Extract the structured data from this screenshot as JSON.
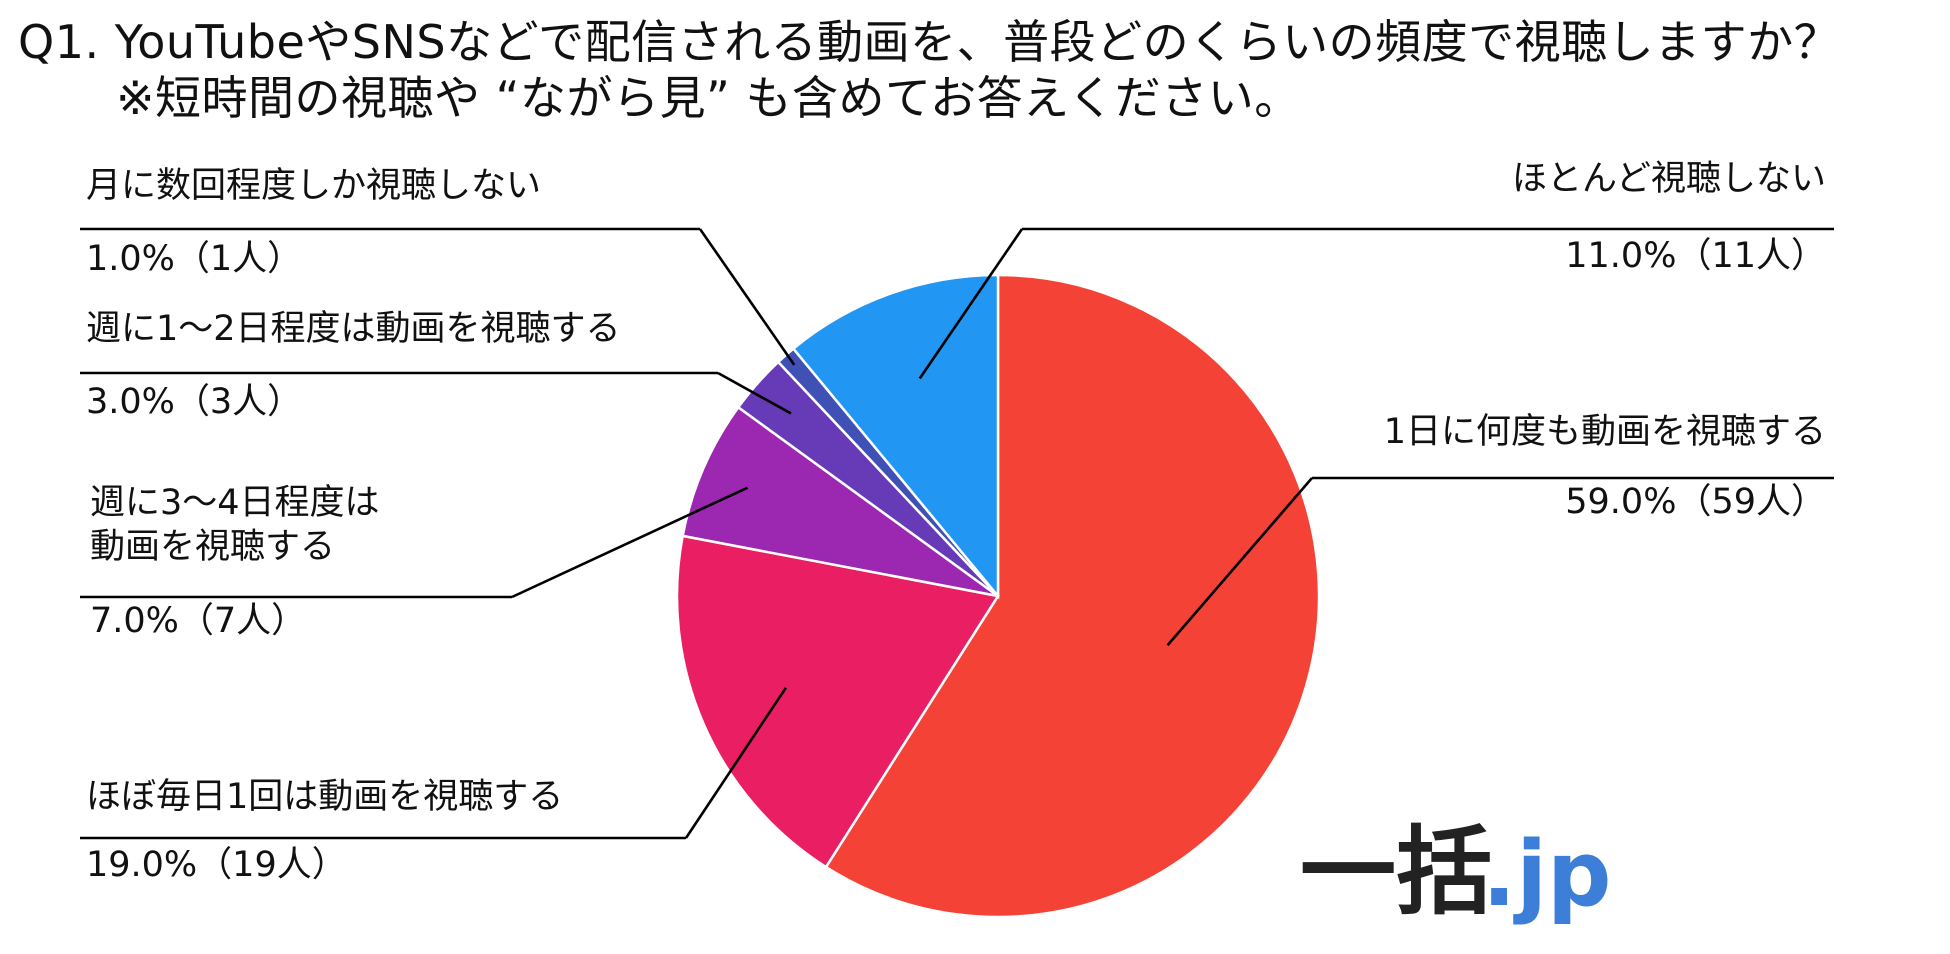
{
  "title": {
    "line1": "Q1. YouTubeやSNSなどで配信される動画を、普段どのくらいの頻度で視聴しますか？",
    "line2": "※短時間の視聴や “ながら見” も含めてお答えください。"
  },
  "chart_data": {
    "type": "pie",
    "start_angle_deg": 0,
    "direction": "clockwise",
    "slices": [
      {
        "label": "1日に何度も動画を視聴する",
        "label_lines": [
          "1日に何度も動画を視聴する"
        ],
        "value": 59.0,
        "count": 59,
        "value_label": "59.0%（59人）",
        "color": "#f44336"
      },
      {
        "label": "ほぼ毎日1回は動画を視聴する",
        "label_lines": [
          "ほぼ毎日1回は動画を視聴する"
        ],
        "value": 19.0,
        "count": 19,
        "value_label": "19.0%（19人）",
        "color": "#e91e63"
      },
      {
        "label": "週に3〜4日程度は動画を視聴する",
        "label_lines": [
          "週に3〜4日程度は",
          "動画を視聴する"
        ],
        "value": 7.0,
        "count": 7,
        "value_label": "7.0%（7人）",
        "color": "#9c27b0"
      },
      {
        "label": "週に1〜2日程度は動画を視聴する",
        "label_lines": [
          "週に1〜2日程度は動画を視聴する"
        ],
        "value": 3.0,
        "count": 3,
        "value_label": "3.0%（3人）",
        "color": "#673ab7"
      },
      {
        "label": "月に数回程度しか視聴しない",
        "label_lines": [
          "月に数回程度しか視聴しない"
        ],
        "value": 1.0,
        "count": 1,
        "value_label": "1.0%（1人）",
        "color": "#3f51b5"
      },
      {
        "label": "ほとんど視聴しない",
        "label_lines": [
          "ほとんど視聴しない"
        ],
        "value": 11.0,
        "count": 11,
        "value_label": "11.0%（11人）",
        "color": "#2196f3"
      }
    ],
    "legend": "none"
  },
  "logo": {
    "text_main": "一括",
    "text_suffix": ".jp",
    "color_main": "#222222",
    "color_suffix": "#3d7fd8"
  }
}
